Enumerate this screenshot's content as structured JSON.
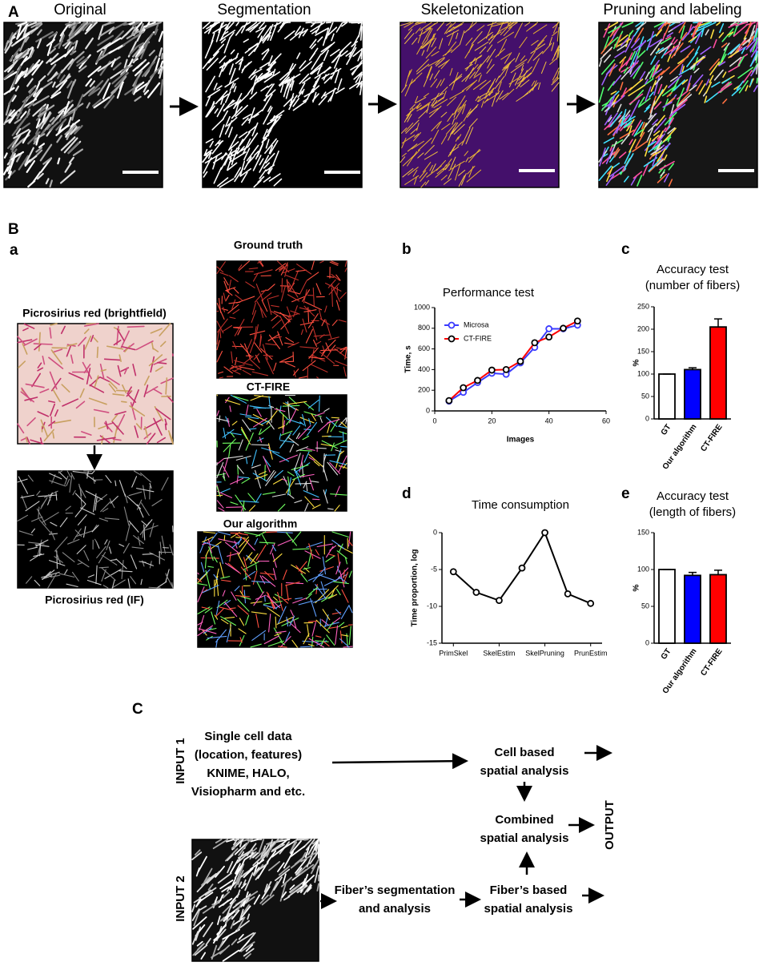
{
  "panel_a": {
    "label": "A",
    "steps": [
      "Original",
      "Segmentation",
      "Skeletonization",
      "Pruning and labeling"
    ]
  },
  "panel_b": {
    "label": "B",
    "sublabels": [
      "a",
      "b",
      "c",
      "d",
      "e"
    ],
    "images": {
      "brightfield": "Picrosirius red (brightfield)",
      "if": "Picrosirius red (IF)",
      "ground_truth": "Ground truth",
      "ctfire": "CT-FIRE",
      "ours": "Our algorithm"
    }
  },
  "chart_data": [
    {
      "type": "line",
      "title": "Performance test",
      "xlabel": "Images",
      "ylabel": "Time, s",
      "x": [
        5,
        10,
        15,
        20,
        25,
        30,
        35,
        40,
        45,
        50
      ],
      "series": [
        {
          "name": "Microsa",
          "color": "#3b3bff",
          "marker_color": "#3b3bff",
          "values": [
            95,
            180,
            275,
            365,
            355,
            465,
            615,
            795,
            795,
            830
          ]
        },
        {
          "name": "CT-FIRE",
          "color": "#ff0000",
          "marker_color": "#000000",
          "values": [
            100,
            225,
            295,
            395,
            400,
            480,
            660,
            715,
            800,
            870
          ]
        }
      ],
      "xlim": [
        0,
        60
      ],
      "xticks": [
        0,
        20,
        40,
        60
      ],
      "ylim": [
        0,
        1000
      ],
      "yticks": [
        0,
        200,
        400,
        600,
        800,
        1000
      ],
      "legend": "upper left"
    },
    {
      "type": "bar",
      "title": [
        "Accuracy test",
        "(number of fibers)"
      ],
      "ylabel": "%",
      "categories": [
        "GT",
        "Our algorithm",
        "CT-FIRE"
      ],
      "values": [
        100,
        110,
        205
      ],
      "errors": [
        0,
        4,
        18
      ],
      "colors": [
        "#ffffff",
        "#0000ff",
        "#ff0000"
      ],
      "ylim": [
        0,
        250
      ],
      "yticks": [
        0,
        50,
        100,
        150,
        200,
        250
      ]
    },
    {
      "type": "line",
      "title": "Time consumption",
      "ylabel": "Time proportion, log",
      "categories": [
        "PrimSkel",
        null,
        "SkelEstim",
        null,
        "SkelPruning",
        null,
        "PrunEstim"
      ],
      "values": [
        -5.3,
        -8.1,
        -9.2,
        -4.8,
        0,
        -8.3,
        -9.6
      ],
      "color": "#000000",
      "ylim": [
        -15,
        0
      ],
      "yticks": [
        -15,
        -10,
        -5,
        0
      ]
    },
    {
      "type": "bar",
      "title": [
        "Accuracy test",
        "(length of fibers)"
      ],
      "ylabel": "%",
      "categories": [
        "GT",
        "Our algorithm",
        "CT-FIRE"
      ],
      "values": [
        100,
        92,
        93
      ],
      "errors": [
        0,
        4,
        6
      ],
      "colors": [
        "#ffffff",
        "#0000ff",
        "#ff0000"
      ],
      "ylim": [
        0,
        150
      ],
      "yticks": [
        0,
        50,
        100,
        150
      ]
    }
  ],
  "panel_c": {
    "label": "C",
    "input1": "INPUT 1",
    "input2": "INPUT 2",
    "output": "OUTPUT",
    "single_cell": [
      "Single cell data",
      "(location, features)",
      "KNIME, HALO,",
      "Visiopharm and etc."
    ],
    "cell_based": [
      "Cell based",
      "spatial analysis"
    ],
    "combined": [
      "Combined",
      "spatial analysis"
    ],
    "fiber_seg": [
      "Fiber’s segmentation",
      "and analysis"
    ],
    "fiber_based": [
      "Fiber’s based",
      "spatial analysis"
    ]
  }
}
